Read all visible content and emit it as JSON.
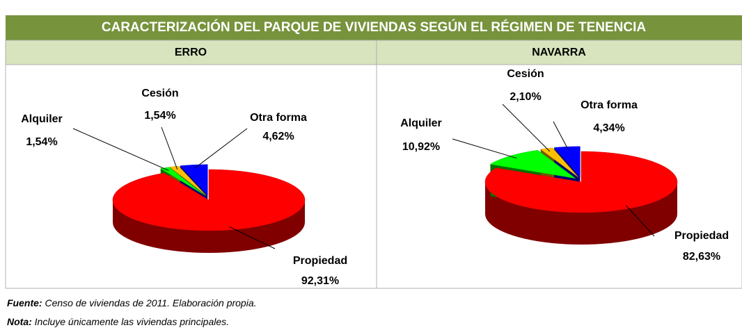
{
  "title": "CARACTERIZACIÓN DEL PARQUE DE VIVIENDAS SEGÚN EL RÉGIMEN DE TENENCIA",
  "source_label": "Fuente:",
  "source": "Censo de viviendas de 2011. Elaboración propia.",
  "note_label": "Nota:",
  "note": "Incluye únicamente las viviendas principales.",
  "chart_data": [
    {
      "type": "pie",
      "title": "ERRO",
      "categories": [
        "Propiedad",
        "Alquiler",
        "Cesión",
        "Otra forma"
      ],
      "values": [
        92.31,
        1.54,
        1.54,
        4.62
      ],
      "value_labels": [
        "92,31%",
        "1,54%",
        "1,54%",
        "4,62%"
      ],
      "colors": [
        "#ff0000",
        "#00ff00",
        "#ffc000",
        "#0000ff"
      ]
    },
    {
      "type": "pie",
      "title": "NAVARRA",
      "categories": [
        "Propiedad",
        "Alquiler",
        "Cesión",
        "Otra forma"
      ],
      "values": [
        82.63,
        10.92,
        2.1,
        4.34
      ],
      "value_labels": [
        "82,63%",
        "10,92%",
        "2,10%",
        "4,34%"
      ],
      "colors": [
        "#ff0000",
        "#00ff00",
        "#ffc000",
        "#0000ff"
      ]
    }
  ]
}
